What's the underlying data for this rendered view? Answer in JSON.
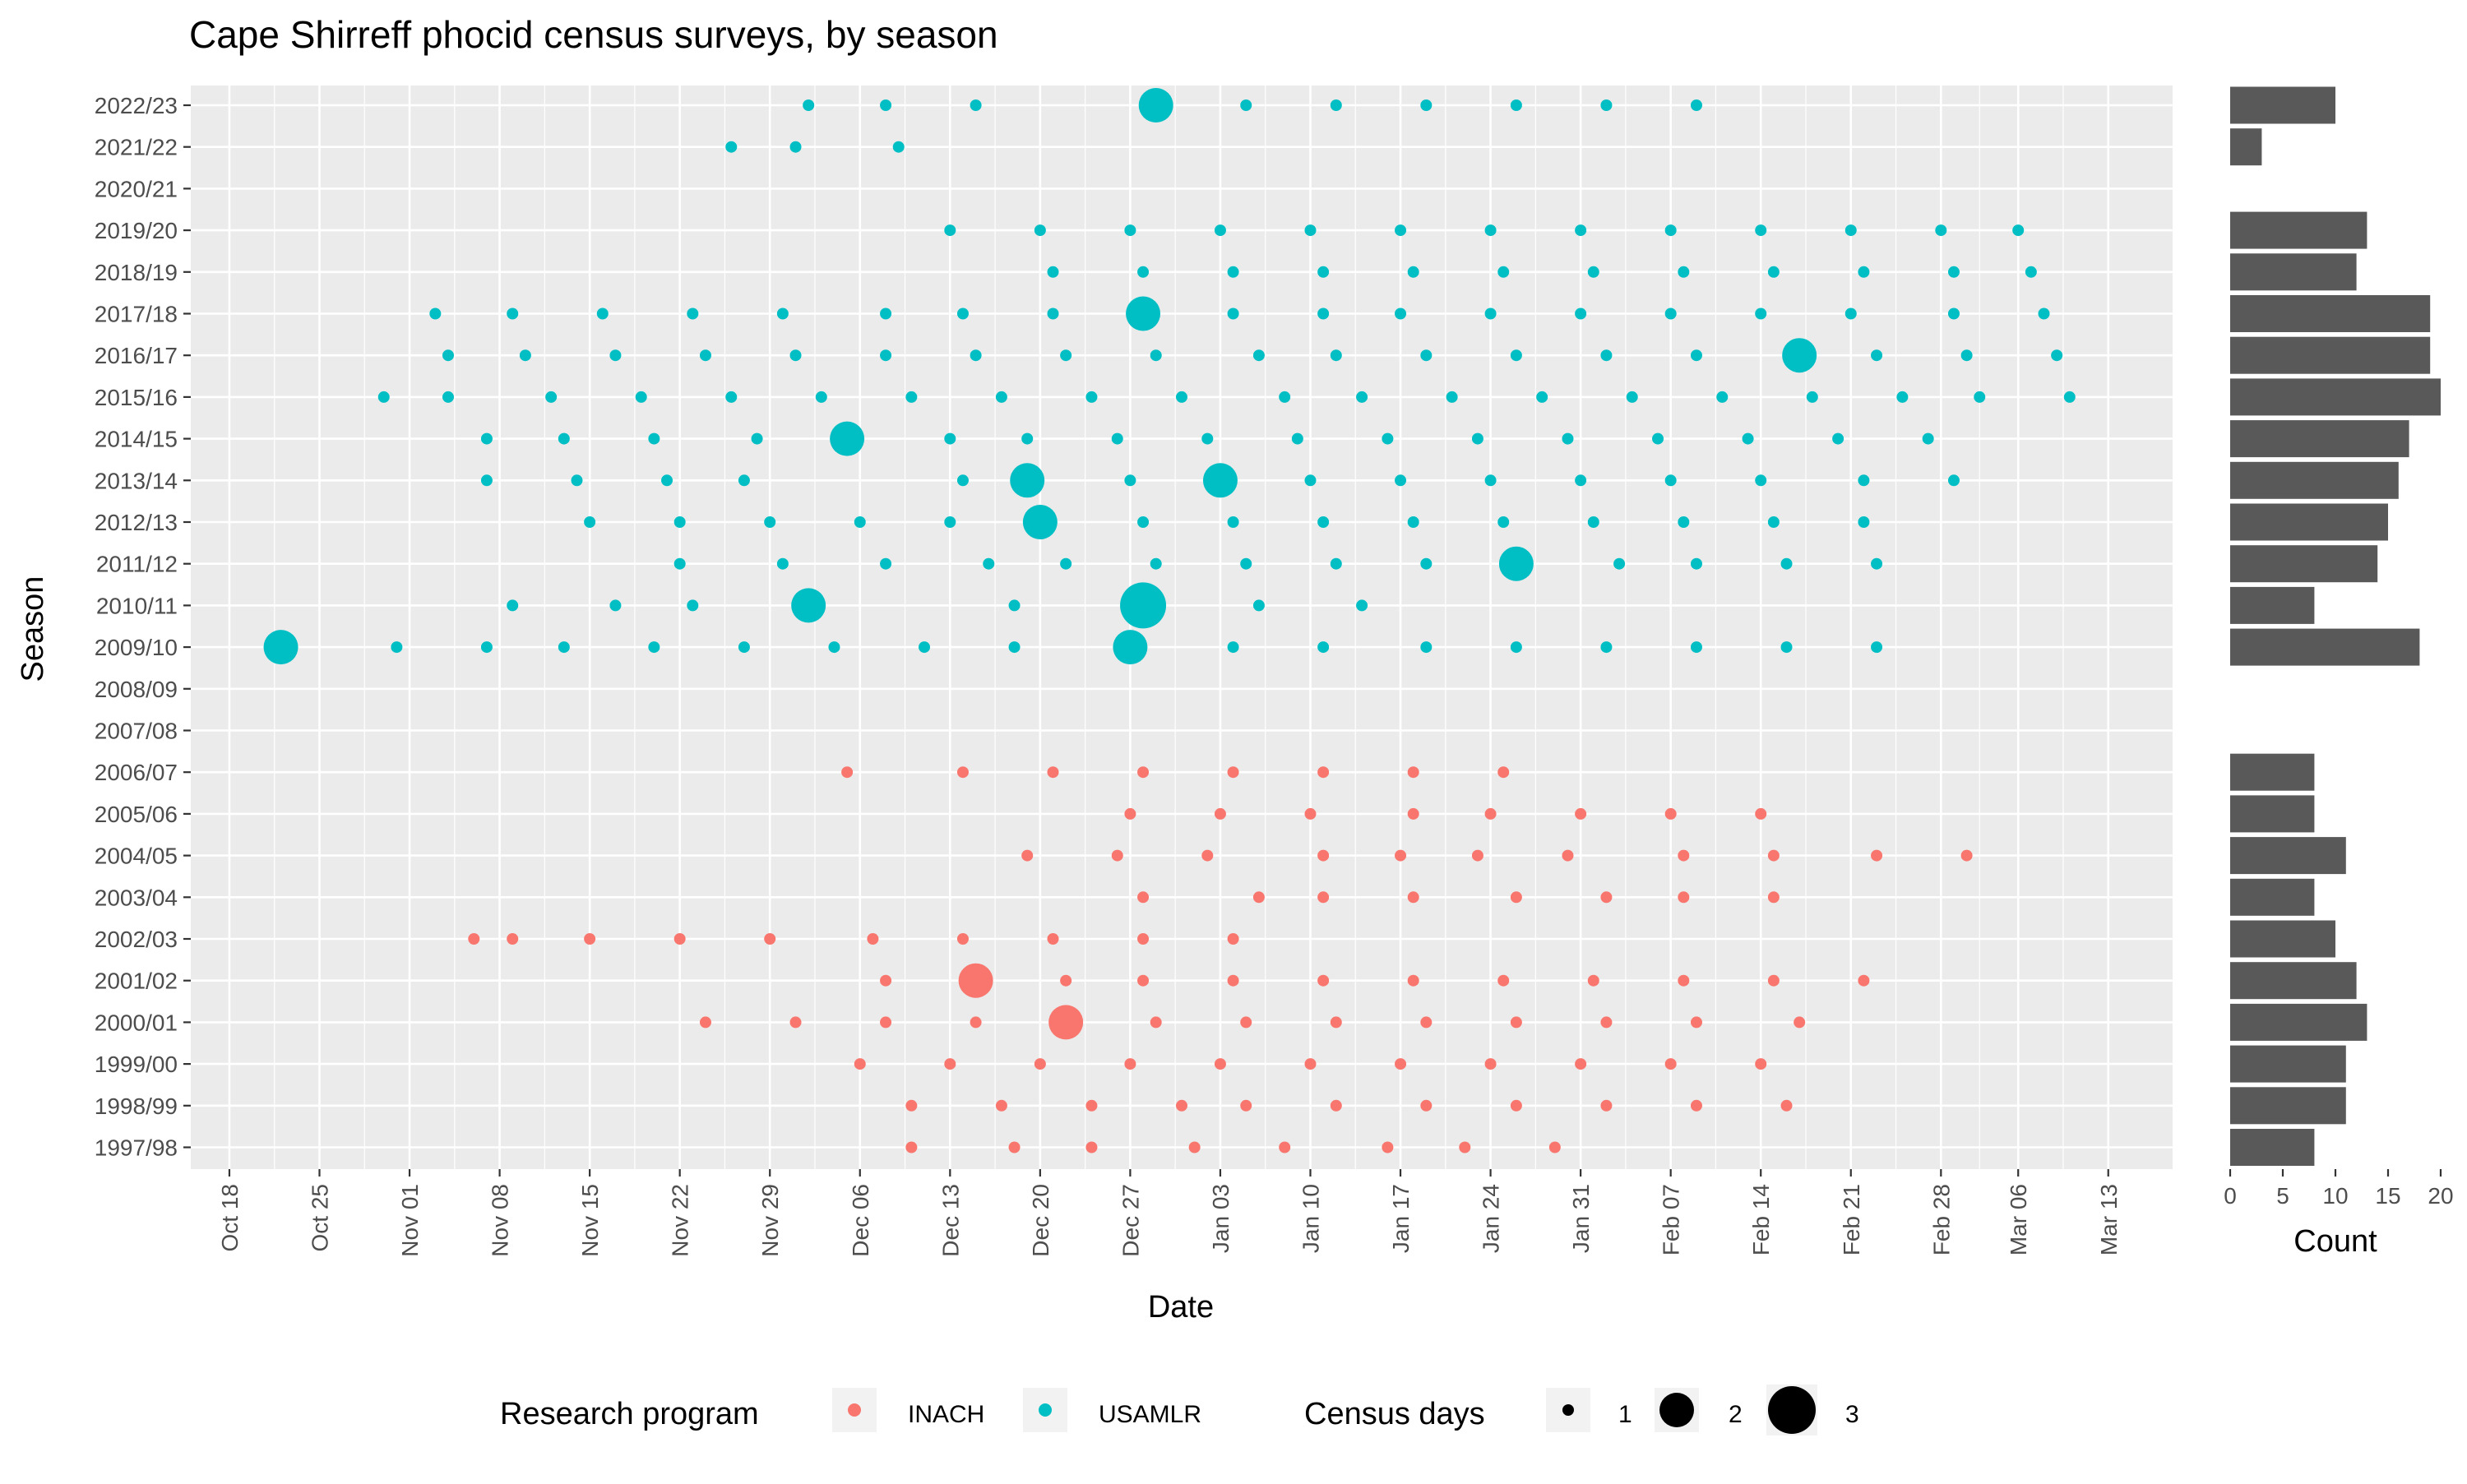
{
  "chart_data": {
    "type": "scatter",
    "title": "Cape Shirreff phocid census surveys, by season",
    "xlabel": "Date",
    "ylabel": "Season",
    "x_type": "date",
    "x_range": [
      "Oct 15",
      "Mar 18"
    ],
    "x_tick_labels": [
      "Oct 18",
      "Oct 25",
      "Nov 01",
      "Nov 08",
      "Nov 15",
      "Nov 22",
      "Nov 29",
      "Dec 06",
      "Dec 13",
      "Dec 20",
      "Dec 27",
      "Jan 03",
      "Jan 10",
      "Jan 17",
      "Jan 24",
      "Jan 31",
      "Feb 07",
      "Feb 14",
      "Feb 21",
      "Feb 28",
      "Mar 06",
      "Mar 13"
    ],
    "seasons": [
      "1997/98",
      "1998/99",
      "1999/00",
      "2000/01",
      "2001/02",
      "2002/03",
      "2003/04",
      "2004/05",
      "2005/06",
      "2006/07",
      "2007/08",
      "2008/09",
      "2009/10",
      "2010/11",
      "2011/12",
      "2012/13",
      "2013/14",
      "2014/15",
      "2015/16",
      "2016/17",
      "2017/18",
      "2018/19",
      "2019/20",
      "2020/21",
      "2021/22",
      "2022/23"
    ],
    "grid": true,
    "legend_position": "bottom",
    "colors": {
      "INACH": "#F8766D",
      "USAMLR": "#00BFC4",
      "panel": "#EBEBEB",
      "bar": "#595959"
    },
    "legend": {
      "program_title": "Research program",
      "programs": [
        "INACH",
        "USAMLR"
      ],
      "size_title": "Census days",
      "sizes": [
        1,
        2,
        3
      ]
    },
    "series": [
      {
        "name": "INACH",
        "points": [
          {
            "season": "1997/98",
            "dates": [
              "Dec 10",
              "Dec 18",
              "Dec 24",
              "Jan 01",
              "Jan 08",
              "Jan 16",
              "Jan 22",
              "Jan 29"
            ]
          },
          {
            "season": "1998/99",
            "dates": [
              "Dec 10",
              "Dec 17",
              "Dec 24",
              "Dec 31",
              "Jan 05",
              "Jan 12",
              "Jan 19",
              "Jan 26",
              "Feb 02",
              "Feb 09",
              "Feb 16"
            ]
          },
          {
            "season": "1999/00",
            "dates": [
              "Dec 06",
              "Dec 13",
              "Dec 20",
              "Dec 27",
              "Jan 03",
              "Jan 10",
              "Jan 17",
              "Jan 24",
              "Jan 31",
              "Feb 07",
              "Feb 14"
            ]
          },
          {
            "season": "2000/01",
            "dates": [
              "Nov 24",
              "Dec 01",
              "Dec 08",
              "Dec 15",
              "Dec 29",
              "Jan 05",
              "Jan 12",
              "Jan 19",
              "Jan 26",
              "Feb 02",
              "Feb 09",
              "Feb 17"
            ],
            "big": [
              {
                "date": "Dec 22",
                "days": 2
              }
            ]
          },
          {
            "season": "2001/02",
            "dates": [
              "Dec 08",
              "Dec 22",
              "Dec 28",
              "Jan 04",
              "Jan 11",
              "Jan 18",
              "Jan 25",
              "Feb 01",
              "Feb 08",
              "Feb 15",
              "Feb 22"
            ],
            "big": [
              {
                "date": "Dec 15",
                "days": 2
              }
            ]
          },
          {
            "season": "2002/03",
            "dates": [
              "Nov 06",
              "Nov 09",
              "Nov 15",
              "Nov 22",
              "Nov 29",
              "Dec 07",
              "Dec 14",
              "Dec 21",
              "Dec 28",
              "Jan 04"
            ]
          },
          {
            "season": "2003/04",
            "dates": [
              "Dec 28",
              "Jan 06",
              "Jan 11",
              "Jan 18",
              "Jan 26",
              "Feb 02",
              "Feb 08",
              "Feb 15"
            ]
          },
          {
            "season": "2004/05",
            "dates": [
              "Dec 19",
              "Dec 26",
              "Jan 02",
              "Jan 11",
              "Jan 17",
              "Jan 23",
              "Jan 30",
              "Feb 08",
              "Feb 15",
              "Feb 23",
              "Mar 02"
            ]
          },
          {
            "season": "2005/06",
            "dates": [
              "Dec 27",
              "Jan 03",
              "Jan 10",
              "Jan 18",
              "Jan 24",
              "Jan 31",
              "Feb 07",
              "Feb 14"
            ]
          },
          {
            "season": "2006/07",
            "dates": [
              "Dec 05",
              "Dec 14",
              "Dec 21",
              "Dec 28",
              "Jan 04",
              "Jan 11",
              "Jan 18",
              "Jan 25"
            ]
          }
        ]
      },
      {
        "name": "USAMLR",
        "points": [
          {
            "season": "2009/10",
            "dates": [
              "Oct 31",
              "Nov 07",
              "Nov 13",
              "Nov 20",
              "Nov 27",
              "Dec 04",
              "Dec 11",
              "Dec 18",
              "Jan 04",
              "Jan 11",
              "Jan 19",
              "Jan 26",
              "Feb 02",
              "Feb 09",
              "Feb 16",
              "Feb 23"
            ],
            "big": [
              {
                "date": "Oct 22",
                "days": 2
              },
              {
                "date": "Dec 27",
                "days": 2
              }
            ]
          },
          {
            "season": "2010/11",
            "dates": [
              "Nov 09",
              "Nov 17",
              "Nov 23",
              "Dec 18",
              "Jan 06",
              "Jan 14"
            ],
            "big": [
              {
                "date": "Dec 02",
                "days": 2
              },
              {
                "date": "Dec 28",
                "days": 3
              }
            ]
          },
          {
            "season": "2011/12",
            "dates": [
              "Nov 22",
              "Nov 30",
              "Dec 08",
              "Dec 16",
              "Dec 22",
              "Dec 29",
              "Jan 05",
              "Jan 12",
              "Jan 19",
              "Feb 03",
              "Feb 09",
              "Feb 16",
              "Feb 23"
            ],
            "big": [
              {
                "date": "Jan 26",
                "days": 2
              }
            ]
          },
          {
            "season": "2012/13",
            "dates": [
              "Nov 15",
              "Nov 22",
              "Nov 29",
              "Dec 06",
              "Dec 13",
              "Dec 28",
              "Jan 04",
              "Jan 11",
              "Jan 18",
              "Jan 25",
              "Feb 01",
              "Feb 08",
              "Feb 15",
              "Feb 22"
            ],
            "big": [
              {
                "date": "Dec 20",
                "days": 2
              }
            ]
          },
          {
            "season": "2013/14",
            "dates": [
              "Nov 07",
              "Nov 14",
              "Nov 21",
              "Nov 27",
              "Dec 14",
              "Dec 27",
              "Jan 10",
              "Jan 17",
              "Jan 24",
              "Jan 31",
              "Feb 07",
              "Feb 14",
              "Feb 22",
              "Mar 01"
            ],
            "big": [
              {
                "date": "Dec 19",
                "days": 2
              },
              {
                "date": "Jan 03",
                "days": 2
              }
            ]
          },
          {
            "season": "2014/15",
            "dates": [
              "Nov 07",
              "Nov 13",
              "Nov 20",
              "Nov 28",
              "Dec 13",
              "Dec 19",
              "Dec 26",
              "Jan 02",
              "Jan 09",
              "Jan 16",
              "Jan 23",
              "Jan 30",
              "Feb 06",
              "Feb 13",
              "Feb 20",
              "Feb 27"
            ],
            "big": [
              {
                "date": "Dec 05",
                "days": 2
              }
            ]
          },
          {
            "season": "2015/16",
            "dates": [
              "Oct 30",
              "Nov 04",
              "Nov 12",
              "Nov 19",
              "Nov 26",
              "Dec 03",
              "Dec 10",
              "Dec 17",
              "Dec 24",
              "Dec 31",
              "Jan 08",
              "Jan 14",
              "Jan 21",
              "Jan 28",
              "Feb 04",
              "Feb 11",
              "Feb 18",
              "Feb 25",
              "Mar 03",
              "Mar 10"
            ]
          },
          {
            "season": "2016/17",
            "dates": [
              "Nov 04",
              "Nov 10",
              "Nov 17",
              "Nov 24",
              "Dec 01",
              "Dec 08",
              "Dec 15",
              "Dec 22",
              "Dec 29",
              "Jan 06",
              "Jan 12",
              "Jan 19",
              "Jan 26",
              "Feb 02",
              "Feb 09",
              "Feb 23",
              "Mar 02",
              "Mar 09"
            ],
            "big": [
              {
                "date": "Feb 17",
                "days": 2
              }
            ]
          },
          {
            "season": "2017/18",
            "dates": [
              "Nov 03",
              "Nov 09",
              "Nov 16",
              "Nov 23",
              "Nov 30",
              "Dec 08",
              "Dec 14",
              "Dec 21",
              "Jan 04",
              "Jan 11",
              "Jan 17",
              "Jan 24",
              "Jan 31",
              "Feb 07",
              "Feb 14",
              "Feb 21",
              "Mar 01",
              "Mar 08"
            ],
            "big": [
              {
                "date": "Dec 28",
                "days": 2
              }
            ]
          },
          {
            "season": "2018/19",
            "dates": [
              "Dec 21",
              "Dec 28",
              "Jan 04",
              "Jan 11",
              "Jan 18",
              "Jan 25",
              "Feb 01",
              "Feb 08",
              "Feb 15",
              "Feb 22",
              "Mar 01",
              "Mar 07"
            ]
          },
          {
            "season": "2019/20",
            "dates": [
              "Dec 13",
              "Dec 20",
              "Dec 27",
              "Jan 03",
              "Jan 10",
              "Jan 17",
              "Jan 24",
              "Jan 31",
              "Feb 07",
              "Feb 14",
              "Feb 21",
              "Feb 28",
              "Mar 06"
            ]
          },
          {
            "season": "2021/22",
            "dates": [
              "Nov 26",
              "Dec 01",
              "Dec 09"
            ]
          },
          {
            "season": "2022/23",
            "dates": [
              "Dec 02",
              "Dec 08",
              "Dec 15",
              "Jan 05",
              "Jan 12",
              "Jan 19",
              "Jan 26",
              "Feb 02",
              "Feb 09"
            ],
            "big": [
              {
                "date": "Dec 29",
                "days": 2
              }
            ]
          }
        ]
      }
    ],
    "count_panel": {
      "type": "bar",
      "orientation": "horizontal",
      "xlabel": "Count",
      "xlim": [
        0,
        20
      ],
      "x_tick_labels": [
        "0",
        "5",
        "10",
        "15",
        "20"
      ],
      "counts": {
        "1997/98": 8,
        "1998/99": 11,
        "1999/00": 11,
        "2000/01": 13,
        "2001/02": 12,
        "2002/03": 10,
        "2003/04": 8,
        "2004/05": 11,
        "2005/06": 8,
        "2006/07": 8,
        "2009/10": 18,
        "2010/11": 8,
        "2011/12": 14,
        "2012/13": 15,
        "2013/14": 16,
        "2014/15": 17,
        "2015/16": 20,
        "2016/17": 19,
        "2017/18": 19,
        "2018/19": 12,
        "2019/20": 13,
        "2021/22": 3,
        "2022/23": 10
      }
    }
  }
}
